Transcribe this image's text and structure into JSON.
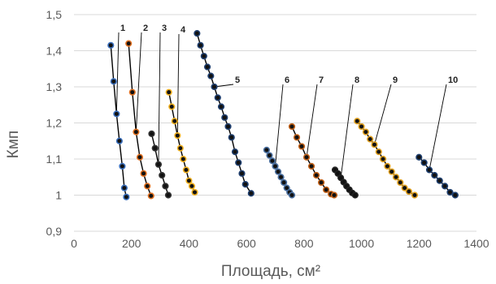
{
  "chart_data": {
    "type": "scatter",
    "title": "",
    "xlabel": "Площадь, см²",
    "ylabel": "Кмп",
    "xlim": [
      0,
      1400
    ],
    "ylim": [
      0.9,
      1.5
    ],
    "x_ticks": [
      "0",
      "200",
      "400",
      "600",
      "800",
      "1000",
      "1200",
      "1400"
    ],
    "y_ticks": [
      "0,9",
      "1",
      "1,1",
      "1,2",
      "1,3",
      "1,4",
      "1,5"
    ],
    "grid": "horizontal",
    "legend": "none",
    "series": [
      {
        "name": "1",
        "color": "#3a6fbd",
        "x": [
          128,
          138,
          148,
          158,
          168,
          175,
          182
        ],
        "y": [
          1.415,
          1.315,
          1.225,
          1.15,
          1.08,
          1.02,
          0.995
        ]
      },
      {
        "name": "2",
        "color": "#e07020",
        "x": [
          190,
          203,
          216,
          229,
          242,
          255,
          268
        ],
        "y": [
          1.42,
          1.285,
          1.175,
          1.105,
          1.06,
          1.025,
          0.998
        ]
      },
      {
        "name": "3",
        "color": "#333333",
        "x": [
          270,
          282,
          294,
          306,
          318,
          328
        ],
        "y": [
          1.17,
          1.13,
          1.085,
          1.055,
          1.025,
          1.0
        ]
      },
      {
        "name": "4",
        "color": "#f0b020",
        "x": [
          330,
          340,
          350,
          360,
          370,
          380,
          390,
          400,
          410,
          420
        ],
        "y": [
          1.285,
          1.245,
          1.205,
          1.165,
          1.13,
          1.1,
          1.07,
          1.04,
          1.025,
          1.008
        ]
      },
      {
        "name": "5",
        "color": "#1f3f6f",
        "x": [
          428,
          440,
          452,
          464,
          476,
          488,
          500,
          512,
          524,
          536,
          548,
          560,
          572,
          584,
          596,
          616
        ],
        "y": [
          1.448,
          1.415,
          1.385,
          1.355,
          1.33,
          1.3,
          1.27,
          1.245,
          1.215,
          1.19,
          1.16,
          1.12,
          1.09,
          1.06,
          1.03,
          1.005
        ]
      },
      {
        "name": "6",
        "color": "#4a6f9f",
        "x": [
          670,
          680,
          690,
          700,
          710,
          720,
          730,
          740,
          750,
          758
        ],
        "y": [
          1.125,
          1.11,
          1.095,
          1.08,
          1.065,
          1.05,
          1.035,
          1.02,
          1.008,
          1.0
        ]
      },
      {
        "name": "7",
        "color": "#c06018",
        "x": [
          758,
          775,
          792,
          809,
          826,
          843,
          860,
          877,
          894,
          905
        ],
        "y": [
          1.19,
          1.16,
          1.135,
          1.105,
          1.08,
          1.055,
          1.035,
          1.015,
          1.003,
          1.0
        ]
      },
      {
        "name": "8",
        "color": "#222222",
        "x": [
          908,
          918,
          928,
          938,
          948,
          958,
          968,
          978
        ],
        "y": [
          1.07,
          1.06,
          1.048,
          1.036,
          1.025,
          1.015,
          1.006,
          1.0
        ]
      },
      {
        "name": "9",
        "color": "#e0a020",
        "x": [
          985,
          1000,
          1015,
          1030,
          1045,
          1060,
          1075,
          1090,
          1105,
          1120,
          1135,
          1150,
          1165,
          1185
        ],
        "y": [
          1.205,
          1.19,
          1.175,
          1.155,
          1.14,
          1.12,
          1.1,
          1.08,
          1.065,
          1.05,
          1.035,
          1.02,
          1.01,
          1.0
        ]
      },
      {
        "name": "10",
        "color": "#1f3f6f",
        "x": [
          1200,
          1218,
          1236,
          1254,
          1272,
          1290,
          1308,
          1326
        ],
        "y": [
          1.105,
          1.09,
          1.07,
          1.055,
          1.04,
          1.025,
          1.008,
          1.0
        ]
      }
    ]
  }
}
